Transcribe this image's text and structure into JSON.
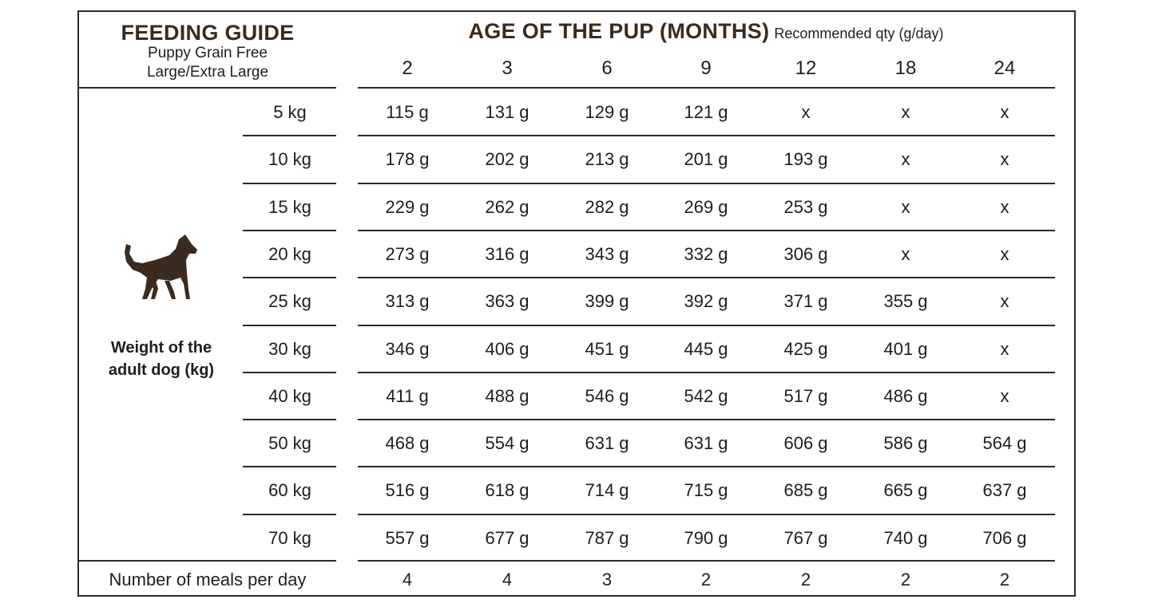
{
  "header": {
    "title": "FEEDING GUIDE",
    "subtitle_line1": "Puppy Grain Free",
    "subtitle_line2": "Large/Extra Large",
    "age_title": "AGE OF THE PUP (MONTHS)",
    "age_note": "Recommended qty (g/day)"
  },
  "ages": [
    "2",
    "3",
    "6",
    "9",
    "12",
    "18",
    "24"
  ],
  "side": {
    "icon": "dog-icon",
    "line1": "Weight of the",
    "line2": "adult dog (kg)"
  },
  "rows": [
    {
      "weight": "5 kg",
      "values": [
        "115 g",
        "131 g",
        "129 g",
        "121 g",
        "x",
        "x",
        "x"
      ]
    },
    {
      "weight": "10 kg",
      "values": [
        "178 g",
        "202 g",
        "213 g",
        "201 g",
        "193 g",
        "x",
        "x"
      ]
    },
    {
      "weight": "15 kg",
      "values": [
        "229 g",
        "262 g",
        "282 g",
        "269 g",
        "253 g",
        "x",
        "x"
      ]
    },
    {
      "weight": "20 kg",
      "values": [
        "273 g",
        "316 g",
        "343 g",
        "332 g",
        "306 g",
        "x",
        "x"
      ]
    },
    {
      "weight": "25 kg",
      "values": [
        "313 g",
        "363 g",
        "399  g",
        "392 g",
        "371 g",
        "355 g",
        "x"
      ]
    },
    {
      "weight": "30 kg",
      "values": [
        "346 g",
        "406 g",
        "451 g",
        "445 g",
        "425 g",
        "401 g",
        "x"
      ]
    },
    {
      "weight": "40 kg",
      "values": [
        "411 g",
        "488 g",
        "546 g",
        "542 g",
        "517 g",
        "486 g",
        "x"
      ]
    },
    {
      "weight": "50 kg",
      "values": [
        "468 g",
        "554 g",
        "631 g",
        "631 g",
        "606 g",
        "586 g",
        "564 g"
      ]
    },
    {
      "weight": "60 kg",
      "values": [
        "516 g",
        "618 g",
        "714 g",
        "715 g",
        "685 g",
        "665 g",
        "637 g"
      ]
    },
    {
      "weight": "70 kg",
      "values": [
        "557 g",
        "677 g",
        "787 g",
        "790 g",
        "767 g",
        "740 g",
        "706 g"
      ]
    }
  ],
  "meals": {
    "label": "Number of meals per day",
    "values": [
      "4",
      "4",
      "3",
      "2",
      "2",
      "2",
      "2"
    ]
  },
  "colors": {
    "heading": "#3b2b1e",
    "dog": "#3b2b1e",
    "lines": "#2a2a2a"
  }
}
